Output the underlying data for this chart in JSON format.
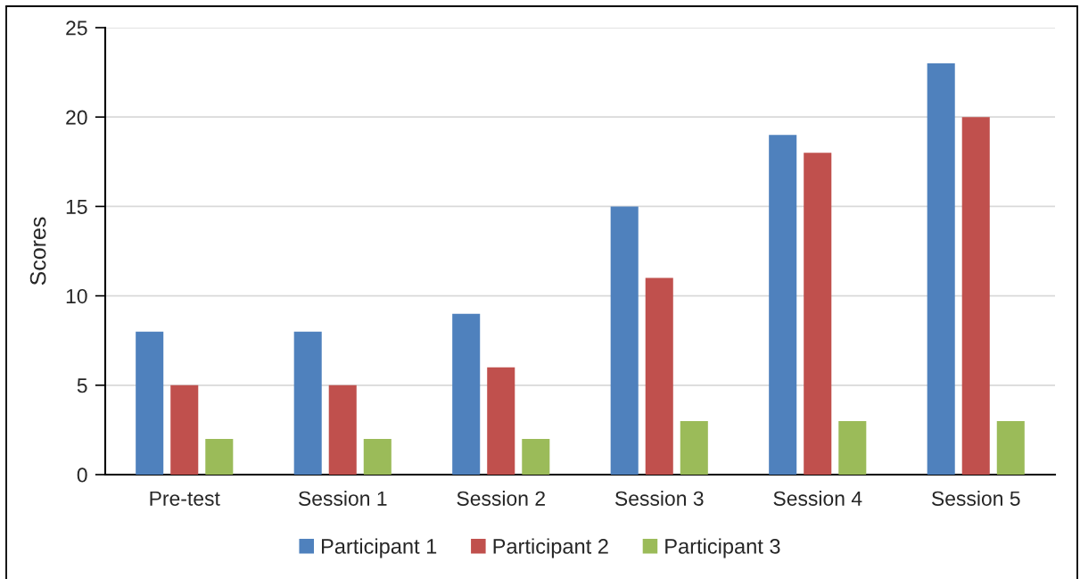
{
  "chart_data": {
    "type": "bar",
    "ylabel": "Scores",
    "categories": [
      "Pre-test",
      "Session 1",
      "Session 2",
      "Session 3",
      "Session 4",
      "Session 5"
    ],
    "series": [
      {
        "name": "Participant 1",
        "color": "#4f81bd",
        "values": [
          8,
          8,
          9,
          15,
          19,
          23
        ]
      },
      {
        "name": "Participant 2",
        "color": "#c0504d",
        "values": [
          5,
          5,
          6,
          11,
          18,
          20
        ]
      },
      {
        "name": "Participant 3",
        "color": "#9bbb59",
        "values": [
          2,
          2,
          2,
          3,
          3,
          3
        ]
      }
    ],
    "ylim": [
      0,
      25
    ],
    "yticks": [
      0,
      5,
      10,
      15,
      20,
      25
    ],
    "grid": "y",
    "legend": "bottom"
  }
}
